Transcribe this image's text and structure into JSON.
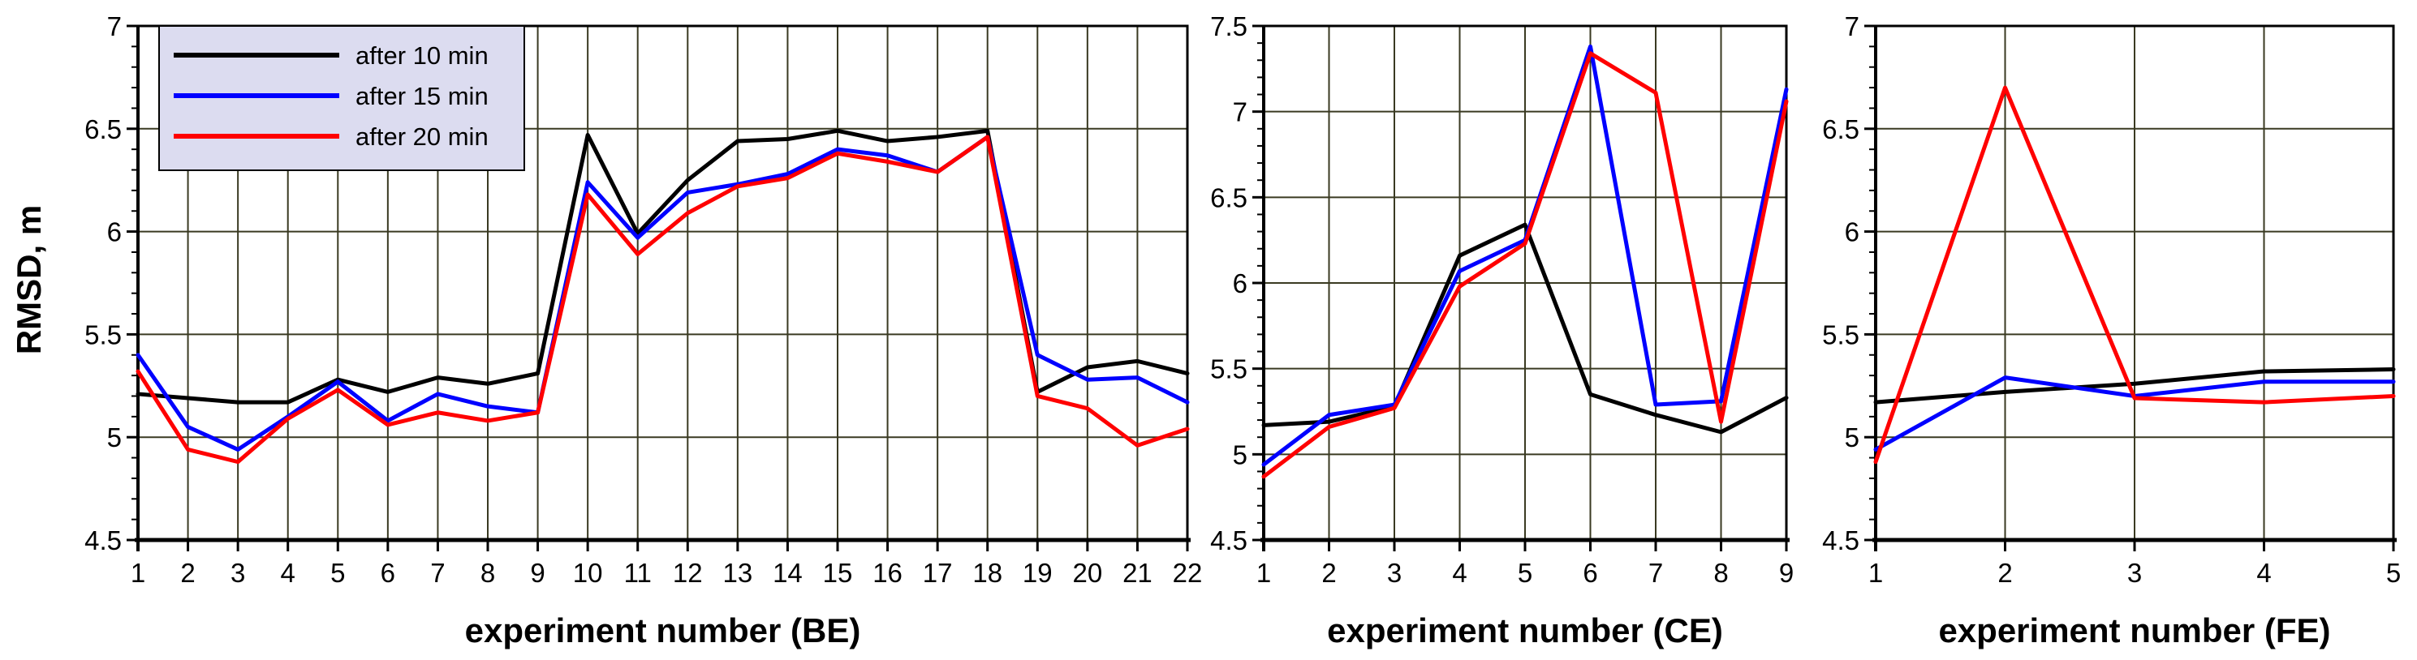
{
  "ylabel": "RMSD, m",
  "legend": {
    "placement": "top-left of first panel",
    "entries": [
      {
        "label": "after 10 min",
        "color": "#000000"
      },
      {
        "label": "after 15 min",
        "color": "#0000ff"
      },
      {
        "label": "after 20 min",
        "color": "#ff0000"
      }
    ]
  },
  "chart_data": [
    {
      "type": "line",
      "xlabel": "experiment number (BE)",
      "ylabel": "RMSD, m",
      "x": [
        1,
        2,
        3,
        4,
        5,
        6,
        7,
        8,
        9,
        10,
        11,
        12,
        13,
        14,
        15,
        16,
        17,
        18,
        19,
        20,
        21,
        22
      ],
      "xlim": [
        1,
        22
      ],
      "ylim": [
        4.5,
        7
      ],
      "yticks": [
        "4.5",
        "5",
        "5.5",
        "6",
        "6.5",
        "7"
      ],
      "grid": true,
      "series": [
        {
          "name": "after 10 min",
          "color": "#000000",
          "values": [
            5.21,
            5.19,
            5.17,
            5.17,
            5.28,
            5.22,
            5.29,
            5.26,
            5.31,
            6.47,
            5.99,
            6.25,
            6.44,
            6.45,
            6.49,
            6.44,
            6.46,
            6.49,
            5.22,
            5.34,
            5.37,
            5.31
          ]
        },
        {
          "name": "after 15 min",
          "color": "#0000ff",
          "values": [
            5.4,
            5.05,
            4.94,
            5.1,
            5.27,
            5.08,
            5.21,
            5.15,
            5.12,
            6.24,
            5.97,
            6.19,
            6.23,
            6.28,
            6.4,
            6.37,
            6.29,
            6.46,
            5.4,
            5.28,
            5.29,
            5.17
          ]
        },
        {
          "name": "after 20 min",
          "color": "#ff0000",
          "values": [
            5.32,
            4.94,
            4.88,
            5.09,
            5.23,
            5.06,
            5.12,
            5.08,
            5.12,
            6.18,
            5.89,
            6.09,
            6.22,
            6.26,
            6.38,
            6.34,
            6.29,
            6.46,
            5.2,
            5.14,
            4.96,
            5.04
          ]
        }
      ]
    },
    {
      "type": "line",
      "xlabel": "experiment number (CE)",
      "x": [
        1,
        2,
        3,
        4,
        5,
        6,
        7,
        8,
        9
      ],
      "xlim": [
        1,
        9
      ],
      "ylim": [
        4.5,
        7.5
      ],
      "yticks": [
        "4.5",
        "5",
        "5.5",
        "6",
        "6.5",
        "7",
        "7.5"
      ],
      "grid": true,
      "series": [
        {
          "name": "after 10 min",
          "color": "#000000",
          "values": [
            5.17,
            5.19,
            5.28,
            6.16,
            6.34,
            5.35,
            5.23,
            5.13,
            5.33
          ]
        },
        {
          "name": "after 15 min",
          "color": "#0000ff",
          "values": [
            4.94,
            5.23,
            5.29,
            6.07,
            6.25,
            7.38,
            5.29,
            5.31,
            7.13
          ]
        },
        {
          "name": "after 20 min",
          "color": "#ff0000",
          "values": [
            4.87,
            5.16,
            5.27,
            5.98,
            6.23,
            7.34,
            7.11,
            5.19,
            7.06
          ]
        }
      ]
    },
    {
      "type": "line",
      "xlabel": "experiment number (FE)",
      "x": [
        1,
        2,
        3,
        4,
        5
      ],
      "xlim": [
        1,
        5
      ],
      "ylim": [
        4.5,
        7
      ],
      "yticks": [
        "4.5",
        "5",
        "5.5",
        "6",
        "6.5",
        "7"
      ],
      "grid": true,
      "series": [
        {
          "name": "after 10 min",
          "color": "#000000",
          "values": [
            5.17,
            5.22,
            5.26,
            5.32,
            5.33
          ]
        },
        {
          "name": "after 15 min",
          "color": "#0000ff",
          "values": [
            4.94,
            5.29,
            5.2,
            5.27,
            5.27
          ]
        },
        {
          "name": "after 20 min",
          "color": "#ff0000",
          "values": [
            4.88,
            6.7,
            5.19,
            5.17,
            5.2
          ]
        }
      ]
    }
  ]
}
